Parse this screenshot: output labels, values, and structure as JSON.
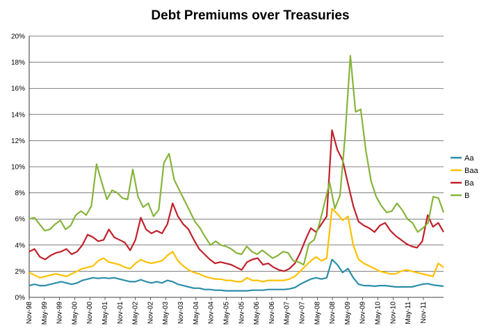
{
  "chart_data": {
    "type": "line",
    "title": "Debt Premiums over Treasuries",
    "xlabel": "",
    "ylabel": "",
    "ylim": [
      0,
      20
    ],
    "y_ticks": [
      "0%",
      "2%",
      "4%",
      "6%",
      "8%",
      "10%",
      "12%",
      "14%",
      "16%",
      "18%",
      "20%"
    ],
    "x_tick_labels": [
      "Nov-98",
      "May-99",
      "Nov-99",
      "May-00",
      "Nov-00",
      "May-01",
      "Nov-01",
      "May-02",
      "Nov-02",
      "May-03",
      "Nov-03",
      "May-04",
      "Nov-04",
      "May-05",
      "Nov-05",
      "May-06",
      "Nov-06",
      "May-07",
      "Nov-07",
      "May-08",
      "Nov-08",
      "May-09",
      "Nov-09",
      "May-10",
      "Nov-10",
      "May-11",
      "Nov-11"
    ],
    "grid": "horizontal",
    "legend_position": "right",
    "colors": {
      "Aa": "#2a8ea8",
      "Baa": "#ffc000",
      "Ba": "#c0202a",
      "B": "#86b43a"
    },
    "series": [
      {
        "name": "Aa",
        "points": [
          [
            0,
            0.9
          ],
          [
            1,
            1.0
          ],
          [
            2,
            0.9
          ],
          [
            3,
            0.9
          ],
          [
            4,
            1.0
          ],
          [
            5,
            1.1
          ],
          [
            6,
            1.2
          ],
          [
            7,
            1.1
          ],
          [
            8,
            1.0
          ],
          [
            9,
            1.1
          ],
          [
            10,
            1.3
          ],
          [
            11,
            1.4
          ],
          [
            12,
            1.5
          ],
          [
            13,
            1.45
          ],
          [
            14,
            1.5
          ],
          [
            15,
            1.45
          ],
          [
            16,
            1.5
          ],
          [
            17,
            1.4
          ],
          [
            18,
            1.3
          ],
          [
            19,
            1.2
          ],
          [
            20,
            1.2
          ],
          [
            21,
            1.35
          ],
          [
            22,
            1.2
          ],
          [
            23,
            1.1
          ],
          [
            24,
            1.2
          ],
          [
            25,
            1.1
          ],
          [
            26,
            1.3
          ],
          [
            27,
            1.2
          ],
          [
            28,
            1.0
          ],
          [
            29,
            0.9
          ],
          [
            30,
            0.8
          ],
          [
            31,
            0.7
          ],
          [
            32,
            0.7
          ],
          [
            33,
            0.6
          ],
          [
            34,
            0.6
          ],
          [
            35,
            0.55
          ],
          [
            36,
            0.55
          ],
          [
            37,
            0.5
          ],
          [
            38,
            0.5
          ],
          [
            39,
            0.5
          ],
          [
            40,
            0.5
          ],
          [
            41,
            0.5
          ],
          [
            42,
            0.55
          ],
          [
            43,
            0.55
          ],
          [
            44,
            0.55
          ],
          [
            45,
            0.6
          ],
          [
            46,
            0.6
          ],
          [
            47,
            0.6
          ],
          [
            48,
            0.6
          ],
          [
            49,
            0.65
          ],
          [
            50,
            0.75
          ],
          [
            51,
            1.0
          ],
          [
            52,
            1.2
          ],
          [
            53,
            1.4
          ],
          [
            54,
            1.5
          ],
          [
            55,
            1.4
          ],
          [
            56,
            1.5
          ],
          [
            57,
            2.9
          ],
          [
            58,
            2.5
          ],
          [
            59,
            1.9
          ],
          [
            60,
            2.2
          ],
          [
            61,
            1.5
          ],
          [
            62,
            1.0
          ],
          [
            63,
            0.9
          ],
          [
            64,
            0.9
          ],
          [
            65,
            0.85
          ],
          [
            66,
            0.9
          ],
          [
            67,
            0.9
          ],
          [
            68,
            0.85
          ],
          [
            69,
            0.8
          ],
          [
            70,
            0.8
          ],
          [
            71,
            0.8
          ],
          [
            72,
            0.8
          ],
          [
            73,
            0.9
          ],
          [
            74,
            1.0
          ],
          [
            75,
            1.05
          ],
          [
            76,
            0.95
          ],
          [
            77,
            0.9
          ],
          [
            78,
            0.85
          ]
        ]
      },
      {
        "name": "Baa",
        "points": [
          [
            0,
            1.9
          ],
          [
            1,
            1.7
          ],
          [
            2,
            1.5
          ],
          [
            3,
            1.6
          ],
          [
            4,
            1.7
          ],
          [
            5,
            1.8
          ],
          [
            6,
            1.7
          ],
          [
            7,
            1.6
          ],
          [
            8,
            1.8
          ],
          [
            9,
            2.0
          ],
          [
            10,
            2.2
          ],
          [
            11,
            2.3
          ],
          [
            12,
            2.4
          ],
          [
            13,
            2.8
          ],
          [
            14,
            3.0
          ],
          [
            15,
            2.7
          ],
          [
            16,
            2.6
          ],
          [
            17,
            2.5
          ],
          [
            18,
            2.3
          ],
          [
            19,
            2.2
          ],
          [
            20,
            2.6
          ],
          [
            21,
            2.9
          ],
          [
            22,
            2.7
          ],
          [
            23,
            2.6
          ],
          [
            24,
            2.7
          ],
          [
            25,
            2.8
          ],
          [
            26,
            3.2
          ],
          [
            27,
            3.5
          ],
          [
            28,
            2.8
          ],
          [
            29,
            2.4
          ],
          [
            30,
            2.1
          ],
          [
            31,
            1.9
          ],
          [
            32,
            1.8
          ],
          [
            33,
            1.6
          ],
          [
            34,
            1.5
          ],
          [
            35,
            1.4
          ],
          [
            36,
            1.4
          ],
          [
            37,
            1.3
          ],
          [
            38,
            1.3
          ],
          [
            39,
            1.2
          ],
          [
            40,
            1.2
          ],
          [
            41,
            1.5
          ],
          [
            42,
            1.3
          ],
          [
            43,
            1.3
          ],
          [
            44,
            1.2
          ],
          [
            45,
            1.3
          ],
          [
            46,
            1.3
          ],
          [
            47,
            1.3
          ],
          [
            48,
            1.3
          ],
          [
            49,
            1.4
          ],
          [
            50,
            1.6
          ],
          [
            51,
            2.0
          ],
          [
            52,
            2.4
          ],
          [
            53,
            2.8
          ],
          [
            54,
            3.1
          ],
          [
            55,
            2.8
          ],
          [
            56,
            3.0
          ],
          [
            57,
            6.8
          ],
          [
            58,
            6.4
          ],
          [
            59,
            5.9
          ],
          [
            60,
            6.2
          ],
          [
            61,
            4.0
          ],
          [
            62,
            2.9
          ],
          [
            63,
            2.6
          ],
          [
            64,
            2.4
          ],
          [
            65,
            2.2
          ],
          [
            66,
            2.0
          ],
          [
            67,
            1.9
          ],
          [
            68,
            1.8
          ],
          [
            69,
            1.8
          ],
          [
            70,
            2.0
          ],
          [
            71,
            2.1
          ],
          [
            72,
            2.0
          ],
          [
            73,
            1.9
          ],
          [
            74,
            1.8
          ],
          [
            75,
            1.7
          ],
          [
            76,
            1.6
          ],
          [
            77,
            2.6
          ],
          [
            78,
            2.3
          ]
        ]
      },
      {
        "name": "Ba",
        "points": [
          [
            0,
            3.5
          ],
          [
            1,
            3.7
          ],
          [
            2,
            3.1
          ],
          [
            3,
            2.9
          ],
          [
            4,
            3.2
          ],
          [
            5,
            3.4
          ],
          [
            6,
            3.5
          ],
          [
            7,
            3.7
          ],
          [
            8,
            3.3
          ],
          [
            9,
            3.5
          ],
          [
            10,
            4.0
          ],
          [
            11,
            4.8
          ],
          [
            12,
            4.6
          ],
          [
            13,
            4.3
          ],
          [
            14,
            4.4
          ],
          [
            15,
            5.2
          ],
          [
            16,
            4.6
          ],
          [
            17,
            4.4
          ],
          [
            18,
            4.2
          ],
          [
            19,
            3.6
          ],
          [
            20,
            4.4
          ],
          [
            21,
            6.1
          ],
          [
            22,
            5.2
          ],
          [
            23,
            4.9
          ],
          [
            24,
            5.1
          ],
          [
            25,
            4.9
          ],
          [
            26,
            5.6
          ],
          [
            27,
            7.2
          ],
          [
            28,
            6.2
          ],
          [
            29,
            5.6
          ],
          [
            30,
            5.2
          ],
          [
            31,
            4.4
          ],
          [
            32,
            3.7
          ],
          [
            33,
            3.3
          ],
          [
            34,
            2.9
          ],
          [
            35,
            2.6
          ],
          [
            36,
            2.7
          ],
          [
            37,
            2.6
          ],
          [
            38,
            2.5
          ],
          [
            39,
            2.3
          ],
          [
            40,
            2.1
          ],
          [
            41,
            2.7
          ],
          [
            42,
            2.9
          ],
          [
            43,
            3.0
          ],
          [
            44,
            2.5
          ],
          [
            45,
            2.6
          ],
          [
            46,
            2.3
          ],
          [
            47,
            2.1
          ],
          [
            48,
            2.0
          ],
          [
            49,
            2.2
          ],
          [
            50,
            2.6
          ],
          [
            51,
            3.4
          ],
          [
            52,
            4.4
          ],
          [
            53,
            5.3
          ],
          [
            54,
            5.0
          ],
          [
            55,
            5.6
          ],
          [
            56,
            6.2
          ],
          [
            57,
            12.8
          ],
          [
            58,
            11.3
          ],
          [
            59,
            10.5
          ],
          [
            60,
            8.7
          ],
          [
            61,
            7.0
          ],
          [
            62,
            5.8
          ],
          [
            63,
            5.5
          ],
          [
            64,
            5.3
          ],
          [
            65,
            5.0
          ],
          [
            66,
            5.5
          ],
          [
            67,
            5.7
          ],
          [
            68,
            5.1
          ],
          [
            69,
            4.7
          ],
          [
            70,
            4.4
          ],
          [
            71,
            4.1
          ],
          [
            72,
            3.9
          ],
          [
            73,
            3.8
          ],
          [
            74,
            4.3
          ],
          [
            75,
            6.3
          ],
          [
            76,
            5.4
          ],
          [
            77,
            5.7
          ],
          [
            78,
            5.0
          ]
        ]
      },
      {
        "name": "B",
        "points": [
          [
            0,
            6.0
          ],
          [
            1,
            6.1
          ],
          [
            2,
            5.6
          ],
          [
            3,
            5.1
          ],
          [
            4,
            5.2
          ],
          [
            5,
            5.6
          ],
          [
            6,
            5.9
          ],
          [
            7,
            5.2
          ],
          [
            8,
            5.5
          ],
          [
            9,
            6.3
          ],
          [
            10,
            6.6
          ],
          [
            11,
            6.3
          ],
          [
            12,
            7.0
          ],
          [
            13,
            10.2
          ],
          [
            14,
            8.8
          ],
          [
            15,
            7.5
          ],
          [
            16,
            8.2
          ],
          [
            17,
            8.0
          ],
          [
            18,
            7.6
          ],
          [
            19,
            7.5
          ],
          [
            20,
            9.8
          ],
          [
            21,
            7.7
          ],
          [
            22,
            6.9
          ],
          [
            23,
            7.2
          ],
          [
            24,
            6.2
          ],
          [
            25,
            6.7
          ],
          [
            26,
            10.3
          ],
          [
            27,
            11.0
          ],
          [
            28,
            9.0
          ],
          [
            29,
            8.2
          ],
          [
            30,
            7.4
          ],
          [
            31,
            6.6
          ],
          [
            32,
            5.8
          ],
          [
            33,
            5.3
          ],
          [
            34,
            4.6
          ],
          [
            35,
            4.0
          ],
          [
            36,
            4.3
          ],
          [
            37,
            4.0
          ],
          [
            38,
            3.9
          ],
          [
            39,
            3.7
          ],
          [
            40,
            3.4
          ],
          [
            41,
            3.3
          ],
          [
            42,
            3.9
          ],
          [
            43,
            3.5
          ],
          [
            44,
            3.3
          ],
          [
            45,
            3.6
          ],
          [
            46,
            3.3
          ],
          [
            47,
            3.0
          ],
          [
            48,
            3.2
          ],
          [
            49,
            3.5
          ],
          [
            50,
            3.4
          ],
          [
            51,
            2.8
          ],
          [
            52,
            2.7
          ],
          [
            53,
            2.5
          ],
          [
            54,
            4.1
          ],
          [
            55,
            4.4
          ],
          [
            56,
            5.6
          ],
          [
            57,
            7.2
          ],
          [
            58,
            8.8
          ],
          [
            59,
            6.8
          ],
          [
            60,
            7.8
          ],
          [
            61,
            12.4
          ],
          [
            62,
            18.5
          ],
          [
            63,
            14.2
          ],
          [
            64,
            14.4
          ],
          [
            65,
            11.2
          ],
          [
            66,
            8.9
          ],
          [
            67,
            7.7
          ],
          [
            68,
            7.0
          ],
          [
            69,
            6.5
          ],
          [
            70,
            6.6
          ],
          [
            71,
            7.2
          ],
          [
            72,
            6.7
          ],
          [
            73,
            6.0
          ],
          [
            74,
            5.7
          ],
          [
            75,
            5.0
          ],
          [
            76,
            5.3
          ],
          [
            77,
            5.7
          ],
          [
            78,
            7.7
          ],
          [
            79,
            7.6
          ],
          [
            80,
            6.5
          ]
        ]
      }
    ]
  }
}
